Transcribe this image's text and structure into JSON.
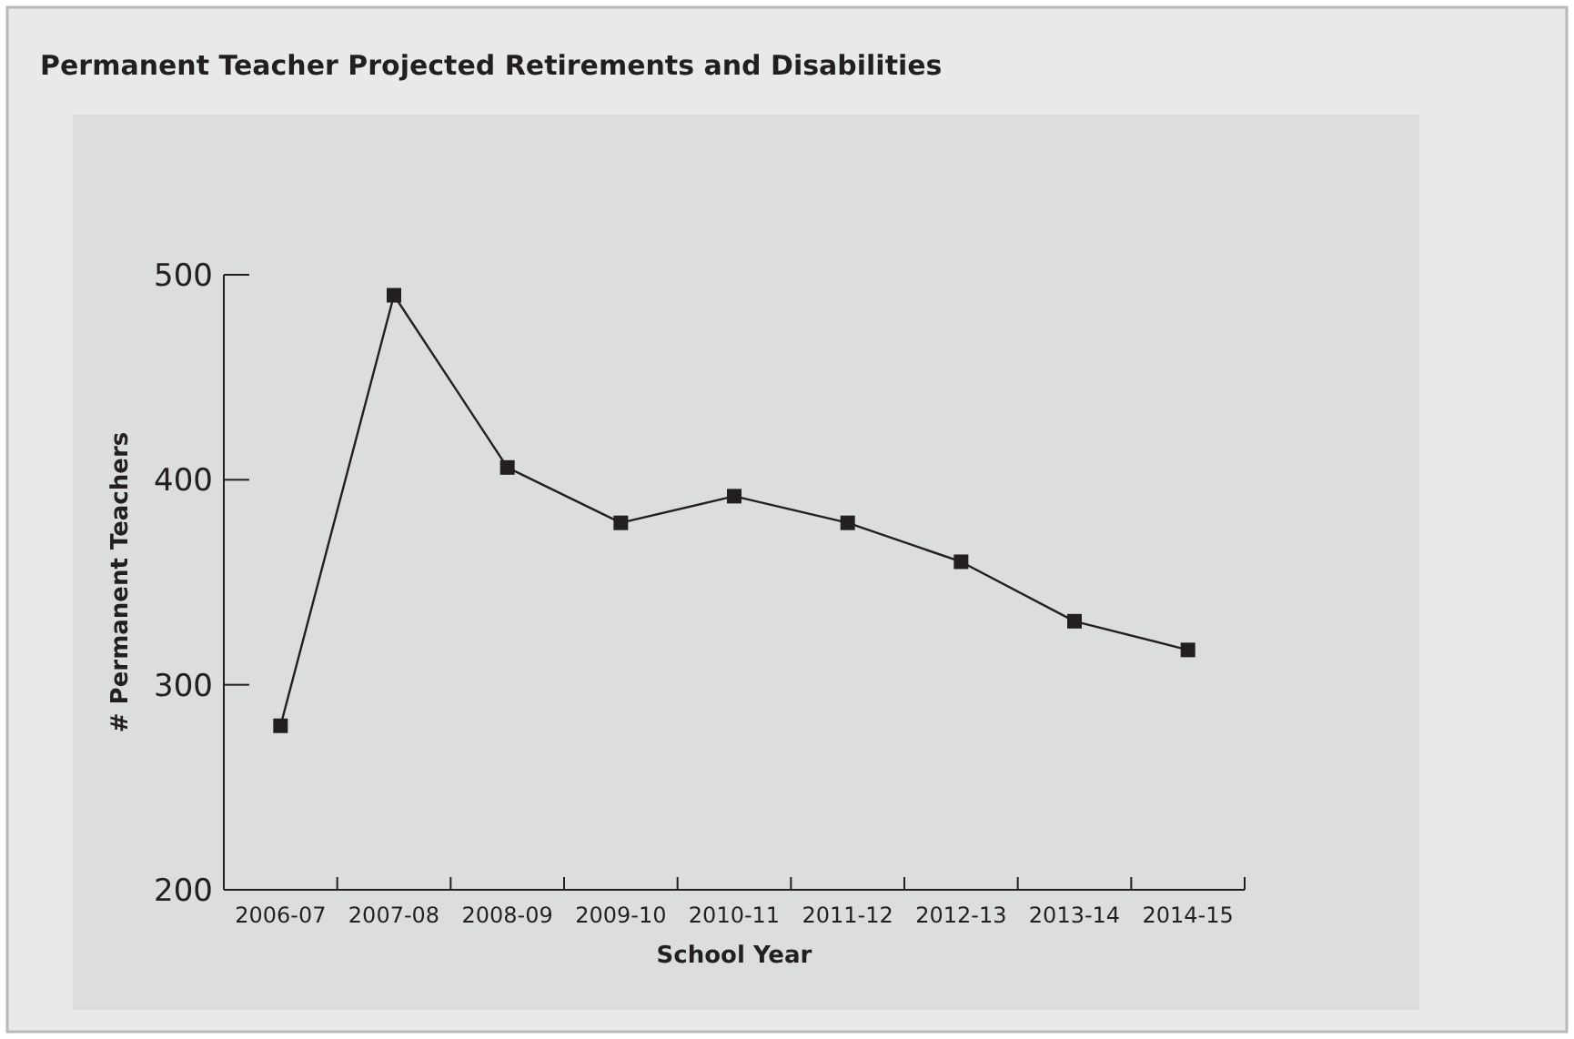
{
  "chart_data": {
    "type": "line",
    "title": "Permanent Teacher Projected Retirements and Disabilities",
    "xlabel": "School Year",
    "ylabel": "# Permanent Teachers",
    "categories": [
      "2006-07",
      "2007-08",
      "2008-09",
      "2009-10",
      "2010-11",
      "2011-12",
      "2012-13",
      "2013-14",
      "2014-15"
    ],
    "series": [
      {
        "color": "#231f20",
        "values": [
          280,
          490,
          406,
          379,
          392,
          379,
          360,
          331,
          317
        ]
      }
    ],
    "ylim": [
      200,
      500
    ],
    "yticks": [
      200,
      300,
      400,
      500
    ],
    "marker": "square",
    "line_style": "solid"
  }
}
